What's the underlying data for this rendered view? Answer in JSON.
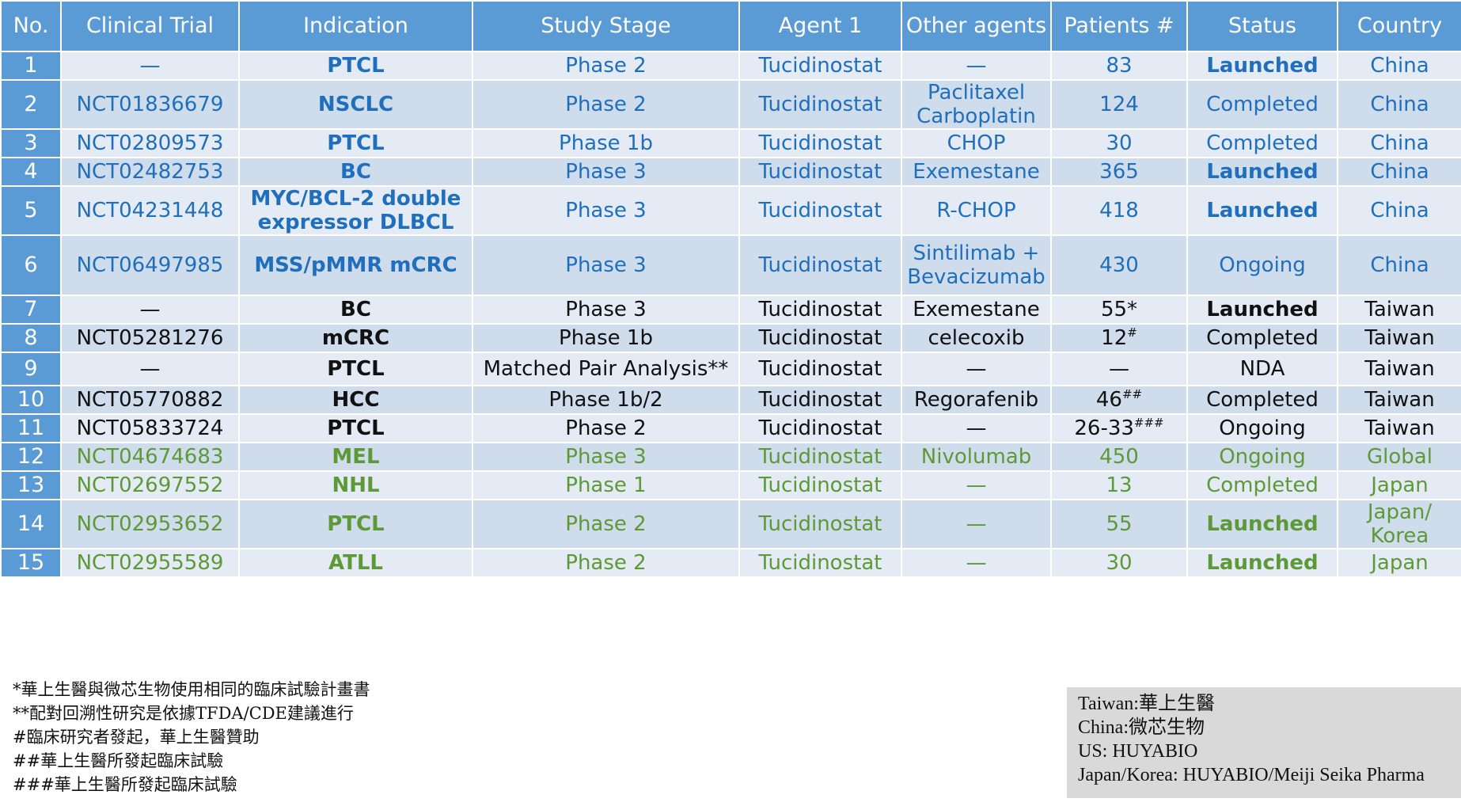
{
  "headers": [
    "No.",
    "Clinical Trial",
    "Indication",
    "Study Stage",
    "Agent 1",
    "Other agents",
    "Patients #",
    "Status",
    "Country"
  ],
  "rows": [
    {
      "no": "1",
      "trial": "—",
      "indication": "PTCL",
      "stage": "Phase 2",
      "agent1": "Tucidinostat",
      "other": "—",
      "patients": "83",
      "patients_sup": "",
      "status": "Launched",
      "country": "China"
    },
    {
      "no": "2",
      "trial": "NCT01836679",
      "indication": "NSCLC",
      "stage": "Phase 2",
      "agent1": "Tucidinostat",
      "other": "Paclitaxel Carboplatin",
      "patients": "124",
      "patients_sup": "",
      "status": "Completed",
      "country": "China"
    },
    {
      "no": "3",
      "trial": "NCT02809573",
      "indication": "PTCL",
      "stage": "Phase 1b",
      "agent1": "Tucidinostat",
      "other": "CHOP",
      "patients": "30",
      "patients_sup": "",
      "status": "Completed",
      "country": "China"
    },
    {
      "no": "4",
      "trial": "NCT02482753",
      "indication": "BC",
      "stage": "Phase 3",
      "agent1": "Tucidinostat",
      "other": "Exemestane",
      "patients": "365",
      "patients_sup": "",
      "status": "Launched",
      "country": "China"
    },
    {
      "no": "5",
      "trial": "NCT04231448",
      "indication": "MYC/BCL-2 double expressor DLBCL",
      "stage": "Phase 3",
      "agent1": "Tucidinostat",
      "other": "R-CHOP",
      "patients": "418",
      "patients_sup": "",
      "status": "Launched",
      "country": "China"
    },
    {
      "no": "6",
      "trial": "NCT06497985",
      "indication": "MSS/pMMR mCRC",
      "stage": "Phase 3",
      "agent1": "Tucidinostat",
      "other": "Sintilimab + Bevacizumab",
      "patients": "430",
      "patients_sup": "",
      "status": "Ongoing",
      "country": "China"
    },
    {
      "no": "7",
      "trial": "—",
      "indication": "BC",
      "stage": "Phase 3",
      "agent1": "Tucidinostat",
      "other": "Exemestane",
      "patients": "55*",
      "patients_sup": "",
      "status": "Launched",
      "country": "Taiwan"
    },
    {
      "no": "8",
      "trial": "NCT05281276",
      "indication": "mCRC",
      "stage": "Phase 1b",
      "agent1": "Tucidinostat",
      "other": "celecoxib",
      "patients": "12",
      "patients_sup": "#",
      "status": "Completed",
      "country": "Taiwan"
    },
    {
      "no": "9",
      "trial": "—",
      "indication": "PTCL",
      "stage": "Matched Pair Analysis**",
      "agent1": "Tucidinostat",
      "other": "—",
      "patients": "—",
      "patients_sup": "",
      "status": "NDA",
      "country": "Taiwan"
    },
    {
      "no": "10",
      "trial": "NCT05770882",
      "indication": "HCC",
      "stage": "Phase 1b/2",
      "agent1": "Tucidinostat",
      "other": "Regorafenib",
      "patients": "46",
      "patients_sup": "##",
      "status": "Completed",
      "country": "Taiwan"
    },
    {
      "no": "11",
      "trial": "NCT05833724",
      "indication": "PTCL",
      "stage": "Phase 2",
      "agent1": "Tucidinostat",
      "other": "—",
      "patients": "26-33",
      "patients_sup": "###",
      "status": "Ongoing",
      "country": "Taiwan"
    },
    {
      "no": "12",
      "trial": "NCT04674683",
      "indication": "MEL",
      "stage": "Phase 3",
      "agent1": "Tucidinostat",
      "other": "Nivolumab",
      "patients": "450",
      "patients_sup": "",
      "status": "Ongoing",
      "country": "Global"
    },
    {
      "no": "13",
      "trial": "NCT02697552",
      "indication": "NHL",
      "stage": "Phase 1",
      "agent1": "Tucidinostat",
      "other": "—",
      "patients": "13",
      "patients_sup": "",
      "status": "Completed",
      "country": "Japan"
    },
    {
      "no": "14",
      "trial": "NCT02953652",
      "indication": "PTCL",
      "stage": "Phase 2",
      "agent1": "Tucidinostat",
      "other": "—",
      "patients": "55",
      "patients_sup": "",
      "status": "Launched",
      "country": "Japan/ Korea"
    },
    {
      "no": "15",
      "trial": "NCT02955589",
      "indication": "ATLL",
      "stage": "Phase 2",
      "agent1": "Tucidinostat",
      "other": "—",
      "patients": "30",
      "patients_sup": "",
      "status": "Launched",
      "country": "Japan"
    }
  ],
  "footnotes": [
    "*華上生醫與微芯生物使用相同的臨床試驗計畫書",
    "**配對回溯性研究是依據TFDA/CDE建議進行",
    "#臨床研究者發起，華上生醫贊助",
    "##華上生醫所發起臨床試驗",
    "###華上生醫所發起臨床試驗"
  ],
  "legend": [
    "Taiwan:華上生醫",
    "China:微芯生物",
    "US: HUYABIO",
    "Japan/Korea: HUYABIO/Meiji Seika Pharma"
  ],
  "colors": {
    "header_bg": "#5b9bd5",
    "row_light": "#e4ebf4",
    "row_dark": "#cfdcec",
    "text_china": "#1f6fbd",
    "text_taiwan": "#111111",
    "text_global_japan": "#5d9a37",
    "legend_bg": "#d9d9d9"
  }
}
